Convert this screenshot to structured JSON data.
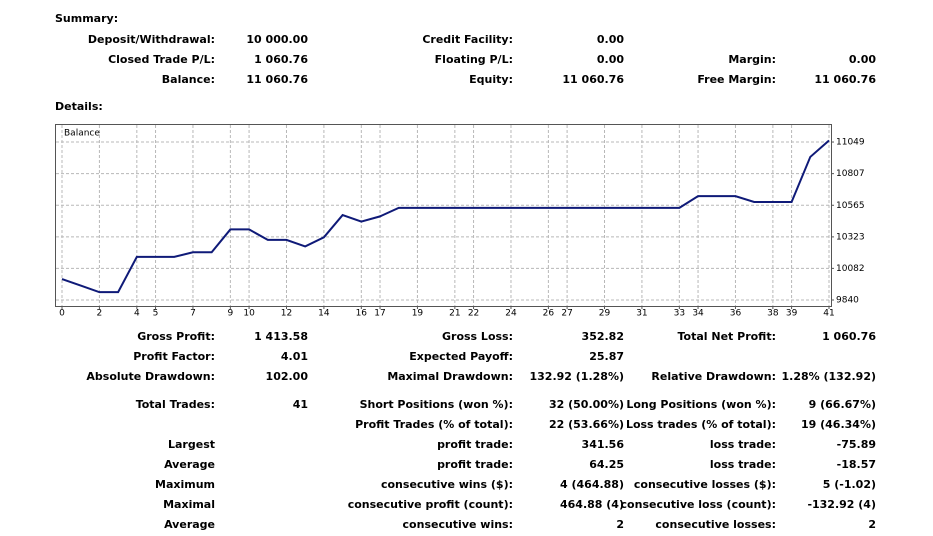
{
  "summary": {
    "title": "Summary:",
    "rows": [
      [
        "Deposit/Withdrawal:",
        "10 000.00",
        "Credit Facility:",
        "0.00",
        null,
        null
      ],
      [
        "Closed Trade P/L:",
        "1 060.76",
        "Floating P/L:",
        "0.00",
        "Margin:",
        "0.00"
      ],
      [
        "Balance:",
        "11 060.76",
        "Equity:",
        "11 060.76",
        "Free Margin:",
        "11 060.76"
      ]
    ]
  },
  "details_title": "Details:",
  "chart_data": {
    "type": "line",
    "x": [
      0,
      1,
      2,
      3,
      4,
      5,
      6,
      7,
      8,
      9,
      10,
      11,
      12,
      13,
      14,
      15,
      16,
      17,
      18,
      19,
      20,
      21,
      22,
      23,
      24,
      25,
      26,
      27,
      28,
      29,
      30,
      31,
      32,
      33,
      34,
      35,
      36,
      37,
      38,
      39,
      40,
      41
    ],
    "series": [
      {
        "name": "Balance",
        "color": "#0f1a78",
        "values": [
          10000,
          9950,
          9900,
          9900,
          10170,
          10170,
          10170,
          10205,
          10205,
          10380,
          10380,
          10300,
          10300,
          10250,
          10320,
          10490,
          10440,
          10480,
          10545,
          10545,
          10545,
          10545,
          10545,
          10545,
          10545,
          10545,
          10545,
          10545,
          10545,
          10545,
          10545,
          10545,
          10545,
          10545,
          10635,
          10635,
          10635,
          10590,
          10590,
          10590,
          10935,
          11061
        ]
      }
    ],
    "xlim": [
      0,
      41
    ],
    "xticks": [
      0,
      2,
      4,
      5,
      7,
      9,
      10,
      12,
      14,
      16,
      17,
      19,
      21,
      22,
      24,
      26,
      27,
      29,
      31,
      33,
      34,
      36,
      38,
      39,
      41
    ],
    "ylim": [
      9794,
      11187
    ],
    "yticks": [
      9840,
      10082,
      10323,
      10565,
      10807,
      11049
    ],
    "grid": true,
    "legend": "top-left"
  },
  "stats": {
    "rows": [
      [
        "Gross Profit:",
        "1 413.58",
        "Gross Loss:",
        "352.82",
        "Total Net Profit:",
        "1 060.76"
      ],
      [
        "Profit Factor:",
        "4.01",
        "Expected Payoff:",
        "25.87",
        null,
        null
      ],
      [
        "Absolute Drawdown:",
        "102.00",
        "Maximal Drawdown:",
        "132.92 (1.28%)",
        "Relative Drawdown:",
        "1.28% (132.92)"
      ],
      [
        "Total Trades:",
        "41",
        "Short Positions (won %):",
        "32 (50.00%)",
        "Long Positions (won %):",
        "9 (66.67%)"
      ],
      [
        null,
        null,
        "Profit Trades (% of total):",
        "22 (53.66%)",
        "Loss trades (% of total):",
        "19 (46.34%)"
      ],
      [
        "Largest",
        null,
        "profit trade:",
        "341.56",
        "loss trade:",
        "-75.89"
      ],
      [
        "Average",
        null,
        "profit trade:",
        "64.25",
        "loss trade:",
        "-18.57"
      ],
      [
        "Maximum",
        null,
        "consecutive wins ($):",
        "4 (464.88)",
        "consecutive losses ($):",
        "5 (-1.02)"
      ],
      [
        "Maximal",
        null,
        "consecutive profit (count):",
        "464.88 (4)",
        "consecutive loss (count):",
        "-132.92 (4)"
      ],
      [
        "Average",
        null,
        "consecutive wins:",
        "2",
        "consecutive losses:",
        "2"
      ]
    ]
  }
}
